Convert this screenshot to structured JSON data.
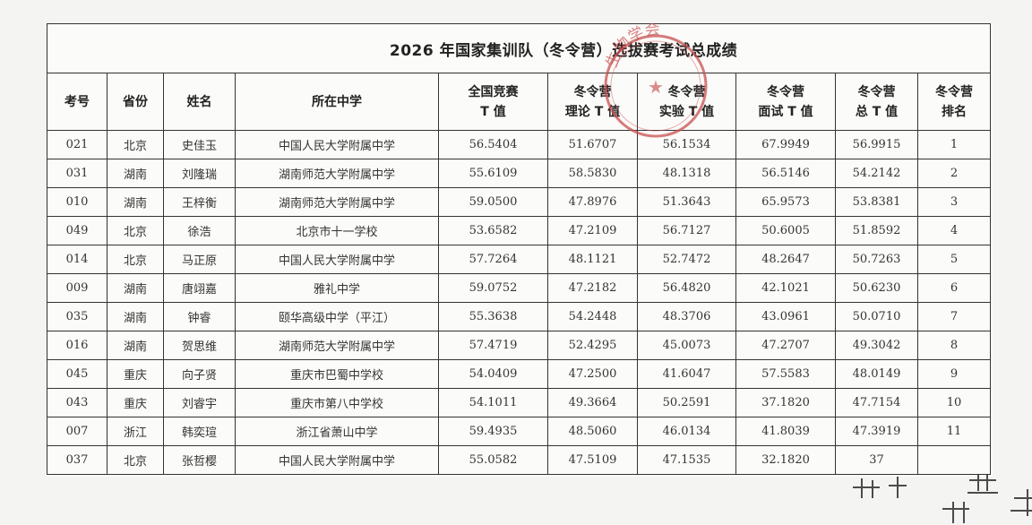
{
  "document": {
    "title": "2026 年国家集训队（冬令营）选拔赛考试总成绩",
    "columns": [
      {
        "line1": "考号",
        "line2": ""
      },
      {
        "line1": "省份",
        "line2": ""
      },
      {
        "line1": "姓名",
        "line2": ""
      },
      {
        "line1": "所在中学",
        "line2": ""
      },
      {
        "line1": "全国竞赛",
        "line2": "T 值"
      },
      {
        "line1": "冬令营",
        "line2": "理论 T 值"
      },
      {
        "line1": "冬令营",
        "line2": "实验 T 值"
      },
      {
        "line1": "冬令营",
        "line2": "面试 T 值"
      },
      {
        "line1": "冬令营",
        "line2": "总 T 值"
      },
      {
        "line1": "冬令营",
        "line2": "排名"
      }
    ],
    "rows": [
      [
        "021",
        "北京",
        "史佳玉",
        "中国人民大学附属中学",
        "56.5404",
        "51.6707",
        "56.1534",
        "67.9949",
        "56.9915",
        "1"
      ],
      [
        "031",
        "湖南",
        "刘隆瑞",
        "湖南师范大学附属中学",
        "55.6109",
        "58.5830",
        "48.1318",
        "56.5146",
        "54.2142",
        "2"
      ],
      [
        "010",
        "湖南",
        "王梓衡",
        "湖南师范大学附属中学",
        "59.0500",
        "47.8976",
        "51.3643",
        "65.9573",
        "53.8381",
        "3"
      ],
      [
        "049",
        "北京",
        "徐浩",
        "北京市十一学校",
        "53.6582",
        "47.2109",
        "56.7127",
        "50.6005",
        "51.8592",
        "4"
      ],
      [
        "014",
        "北京",
        "马正原",
        "中国人民大学附属中学",
        "57.7264",
        "48.1121",
        "52.7472",
        "48.2647",
        "50.7263",
        "5"
      ],
      [
        "009",
        "湖南",
        "唐翊嘉",
        "雅礼中学",
        "59.0752",
        "47.2182",
        "56.4820",
        "42.1021",
        "50.6230",
        "6"
      ],
      [
        "035",
        "湖南",
        "钟睿",
        "颐华高级中学（平江）",
        "55.3638",
        "54.2448",
        "48.3706",
        "43.0961",
        "50.0710",
        "7"
      ],
      [
        "016",
        "湖南",
        "贺思维",
        "湖南师范大学附属中学",
        "57.4719",
        "52.4295",
        "45.0073",
        "47.2707",
        "49.3042",
        "8"
      ],
      [
        "045",
        "重庆",
        "向子贤",
        "重庆市巴蜀中学校",
        "54.0409",
        "47.2500",
        "41.6047",
        "57.5583",
        "48.0149",
        "9"
      ],
      [
        "043",
        "重庆",
        "刘睿宇",
        "重庆市第八中学校",
        "54.1011",
        "49.3664",
        "50.2591",
        "37.1820",
        "47.7154",
        "10"
      ],
      [
        "007",
        "浙江",
        "韩奕瑄",
        "浙江省萧山中学",
        "59.4935",
        "48.5060",
        "46.0134",
        "41.8039",
        "47.3919",
        "11"
      ],
      [
        "037",
        "北京",
        "张哲樱",
        "中国人民大学附属中学",
        "55.0582",
        "47.5109",
        "47.1535",
        "32.1820",
        "37",
        ""
      ]
    ],
    "seal_text": "生物学会"
  },
  "colors": {
    "seal": "#c85050",
    "grid": "#333333",
    "paper": "#fbfbf9"
  }
}
